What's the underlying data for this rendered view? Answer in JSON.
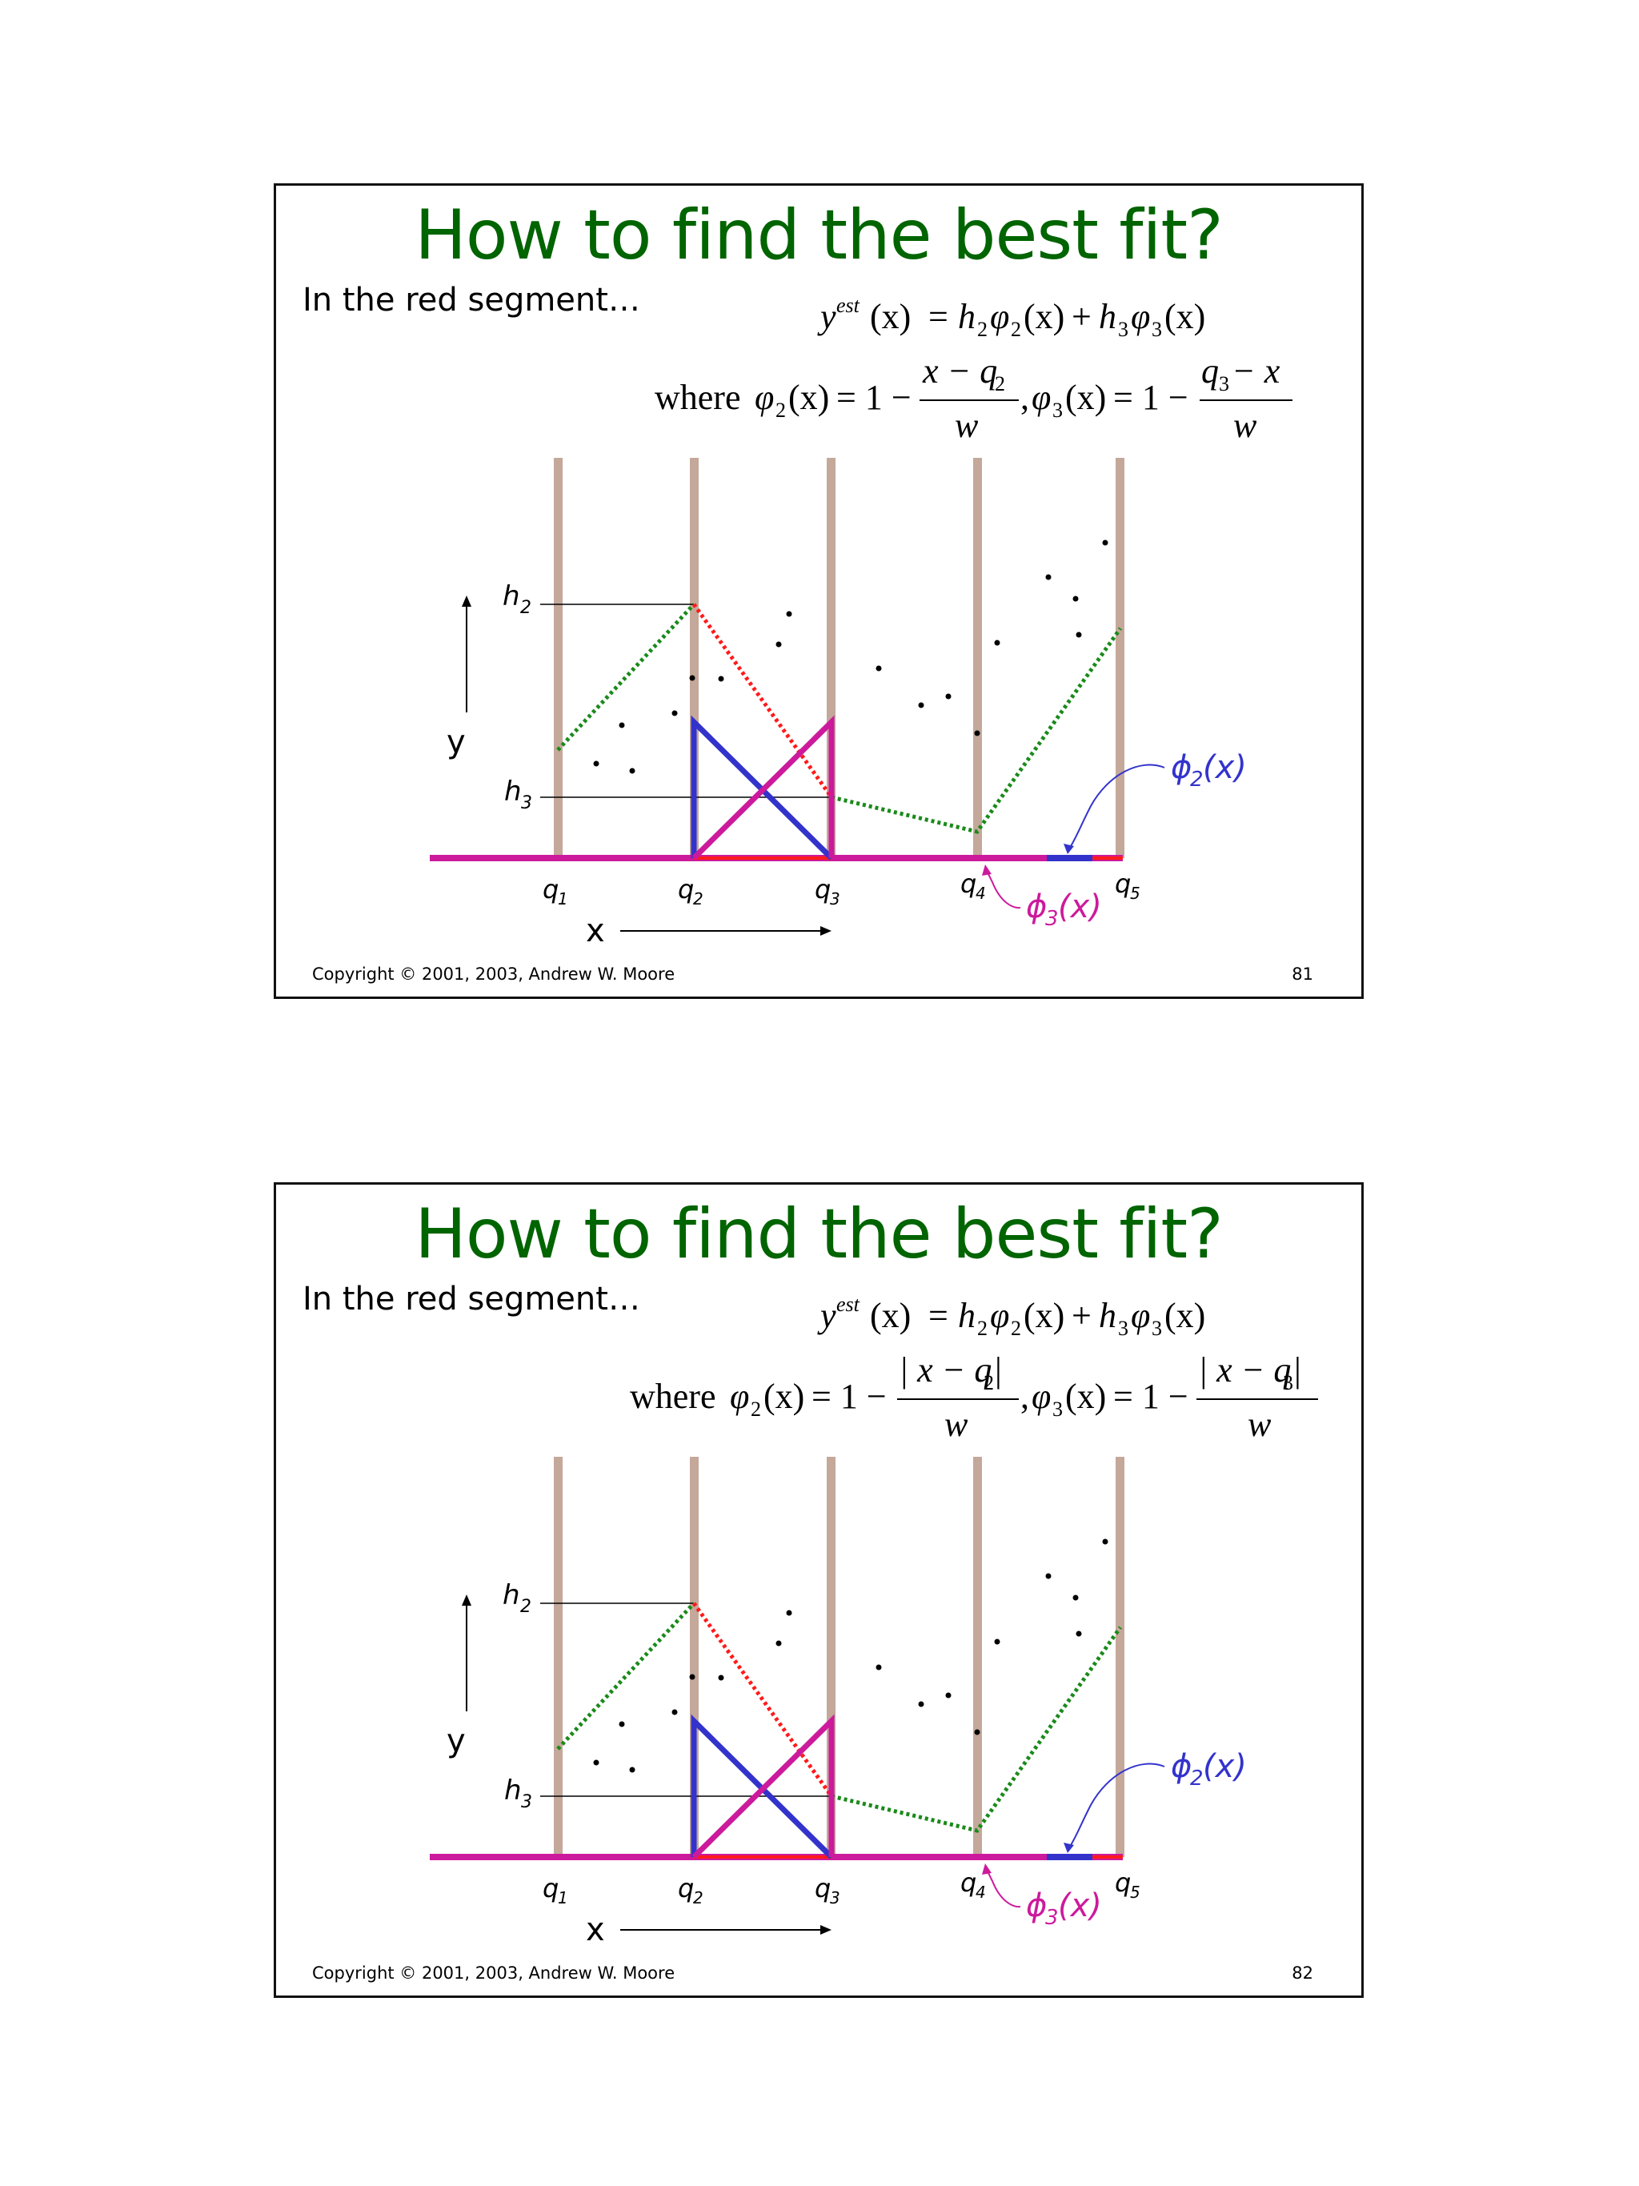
{
  "slides": [
    {
      "title": "How to find the best fit?",
      "intro": "In the red segment…",
      "formula_1": {
        "lhs_y": "y",
        "lhs_sup": "est",
        "lhs_arg": "(x)",
        "equals": "=",
        "t1_h": "h",
        "t1_h_sub": "2",
        "t1_phi": "φ",
        "t1_phi_sub": "2",
        "t1_arg": "(x)",
        "plus": "+",
        "t2_h": "h",
        "t2_h_sub": "3",
        "t2_phi": "φ",
        "t2_phi_sub": "3",
        "t2_arg": "(x)"
      },
      "formula_2": {
        "where": "where",
        "phi2": "φ",
        "phi2_sub": "2",
        "phi2_arg": "(x)",
        "eq1": "= 1 −",
        "num1_a": "x − q",
        "num1_sub": "2",
        "num1_b": "",
        "den1": "w",
        "comma": ",",
        "phi3": "φ",
        "phi3_sub": "3",
        "phi3_arg": "(x)",
        "eq2": "= 1 −",
        "num2_a": "q",
        "num2_sub": "3",
        "num2_b": " − x",
        "den2": "w"
      },
      "plot": {
        "y_label": "y",
        "x_label": "x",
        "h2": "h",
        "h2_sub": "2",
        "h3": "h",
        "h3_sub": "3",
        "knots": [
          {
            "q": "q",
            "sub": "1"
          },
          {
            "q": "q",
            "sub": "2"
          },
          {
            "q": "q",
            "sub": "3"
          },
          {
            "q": "q",
            "sub": "4"
          },
          {
            "q": "q",
            "sub": "5"
          }
        ],
        "phi2_label": "ϕ",
        "phi2_label_sub": "2",
        "phi2_label_arg": "(x)",
        "phi3_label": "ϕ",
        "phi3_label_sub": "3",
        "phi3_label_arg": "(x)"
      },
      "copyright": "Copyright © 2001, 2003, Andrew W. Moore",
      "page": "81"
    },
    {
      "title": "How to find the best fit?",
      "intro": "In the red segment…",
      "formula_1": {
        "lhs_y": "y",
        "lhs_sup": "est",
        "lhs_arg": "(x)",
        "equals": "=",
        "t1_h": "h",
        "t1_h_sub": "2",
        "t1_phi": "φ",
        "t1_phi_sub": "2",
        "t1_arg": "(x)",
        "plus": "+",
        "t2_h": "h",
        "t2_h_sub": "3",
        "t2_phi": "φ",
        "t2_phi_sub": "3",
        "t2_arg": "(x)"
      },
      "formula_2": {
        "where": "where",
        "phi2": "φ",
        "phi2_sub": "2",
        "phi2_arg": "(x)",
        "eq1": "= 1 −",
        "num1_a": "| x − q",
        "num1_sub": "2",
        "num1_b": " |",
        "den1": "w",
        "comma": ",",
        "phi3": "φ",
        "phi3_sub": "3",
        "phi3_arg": "(x)",
        "eq2": "= 1 −",
        "num2_a": "| x − q",
        "num2_sub": "3",
        "num2_b": " |",
        "den2": "w"
      },
      "plot": {
        "y_label": "y",
        "x_label": "x",
        "h2": "h",
        "h2_sub": "2",
        "h3": "h",
        "h3_sub": "3",
        "knots": [
          {
            "q": "q",
            "sub": "1"
          },
          {
            "q": "q",
            "sub": "2"
          },
          {
            "q": "q",
            "sub": "3"
          },
          {
            "q": "q",
            "sub": "4"
          },
          {
            "q": "q",
            "sub": "5"
          }
        ],
        "phi2_label": "ϕ",
        "phi2_label_sub": "2",
        "phi2_label_arg": "(x)",
        "phi3_label": "ϕ",
        "phi3_label_sub": "3",
        "phi3_label_arg": "(x)"
      },
      "copyright": "Copyright © 2001, 2003, Andrew W. Moore",
      "page": "82"
    }
  ],
  "colors": {
    "title": "#006400",
    "knot_bar": "#c4a89a",
    "baseline": "#cc1a9c",
    "red_segment": "#ff1a1a",
    "green_dotted": "#1a8a1a",
    "phi2_blue": "#3333cc",
    "phi3_magenta": "#cc1a9c"
  }
}
